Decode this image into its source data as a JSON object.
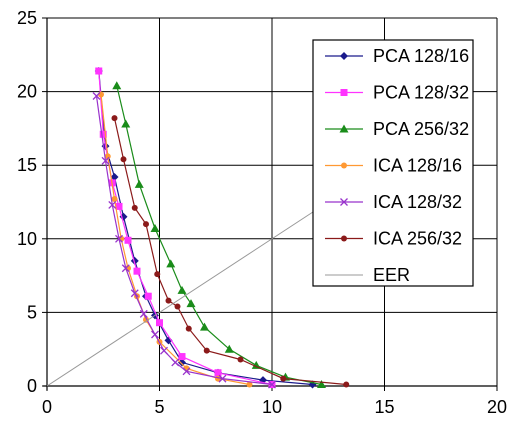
{
  "chart_data": {
    "type": "scatter",
    "title": "",
    "xlabel": "",
    "ylabel": "",
    "xlim": [
      0,
      20
    ],
    "ylim": [
      0,
      25
    ],
    "xticks": [
      0,
      5,
      10,
      15,
      20
    ],
    "yticks": [
      0,
      5,
      10,
      15,
      20,
      25
    ],
    "grid": true,
    "legend_position": "top-right",
    "series": [
      {
        "name": "PCA 128/16",
        "color": "#1a1a8c",
        "marker": "diamond",
        "points": [
          [
            2.3,
            21.4
          ],
          [
            2.6,
            16.3
          ],
          [
            3.0,
            14.2
          ],
          [
            3.4,
            11.5
          ],
          [
            3.9,
            8.5
          ],
          [
            4.4,
            6.1
          ],
          [
            4.8,
            4.8
          ],
          [
            5.4,
            3.1
          ],
          [
            6.0,
            1.6
          ],
          [
            7.6,
            0.9
          ],
          [
            9.6,
            0.4
          ],
          [
            11.8,
            0.1
          ]
        ]
      },
      {
        "name": "PCA 128/32",
        "color": "#ff33ff",
        "marker": "square",
        "points": [
          [
            2.3,
            21.4
          ],
          [
            2.5,
            17.1
          ],
          [
            2.9,
            13.8
          ],
          [
            3.2,
            12.2
          ],
          [
            3.6,
            9.9
          ],
          [
            4.0,
            7.8
          ],
          [
            4.5,
            6.1
          ],
          [
            5.0,
            4.3
          ],
          [
            6.0,
            2.0
          ],
          [
            7.6,
            0.9
          ],
          [
            10.0,
            0.1
          ]
        ]
      },
      {
        "name": "PCA 256/32",
        "color": "#1a8c1a",
        "marker": "triangle",
        "points": [
          [
            3.1,
            20.4
          ],
          [
            3.5,
            17.8
          ],
          [
            4.1,
            13.7
          ],
          [
            4.8,
            10.7
          ],
          [
            5.5,
            8.3
          ],
          [
            6.0,
            6.5
          ],
          [
            6.4,
            5.6
          ],
          [
            7.0,
            4.0
          ],
          [
            8.1,
            2.5
          ],
          [
            9.3,
            1.4
          ],
          [
            10.6,
            0.6
          ],
          [
            12.2,
            0.1
          ]
        ]
      },
      {
        "name": "ICA 128/16",
        "color": "#ff9933",
        "marker": "circle",
        "points": [
          [
            2.4,
            19.8
          ],
          [
            2.7,
            15.6
          ],
          [
            3.0,
            12.7
          ],
          [
            3.3,
            10.0
          ],
          [
            3.6,
            8.0
          ],
          [
            4.0,
            6.1
          ],
          [
            4.4,
            4.5
          ],
          [
            5.0,
            3.0
          ],
          [
            6.2,
            1.2
          ],
          [
            7.6,
            0.5
          ],
          [
            9.0,
            0.1
          ]
        ]
      },
      {
        "name": "ICA 128/32",
        "color": "#9933cc",
        "marker": "cross",
        "points": [
          [
            2.2,
            19.7
          ],
          [
            2.6,
            15.3
          ],
          [
            2.9,
            12.3
          ],
          [
            3.2,
            10.0
          ],
          [
            3.5,
            8.0
          ],
          [
            3.9,
            6.3
          ],
          [
            4.3,
            4.9
          ],
          [
            4.8,
            3.5
          ],
          [
            5.2,
            2.4
          ],
          [
            5.7,
            1.6
          ],
          [
            6.2,
            1.0
          ],
          [
            7.8,
            0.5
          ],
          [
            10.0,
            0.1
          ]
        ]
      },
      {
        "name": "ICA 256/32",
        "color": "#8b1a1a",
        "marker": "circle",
        "points": [
          [
            3.0,
            18.2
          ],
          [
            3.4,
            15.4
          ],
          [
            3.9,
            12.1
          ],
          [
            4.4,
            11.0
          ],
          [
            4.9,
            7.6
          ],
          [
            5.4,
            5.8
          ],
          [
            5.8,
            5.4
          ],
          [
            6.3,
            3.9
          ],
          [
            7.1,
            2.4
          ],
          [
            8.6,
            1.8
          ],
          [
            10.5,
            0.5
          ],
          [
            13.3,
            0.1
          ]
        ]
      },
      {
        "name": "EER",
        "color": "#999999",
        "marker": "none",
        "points": [
          [
            0,
            0
          ],
          [
            15,
            15
          ]
        ]
      }
    ]
  }
}
